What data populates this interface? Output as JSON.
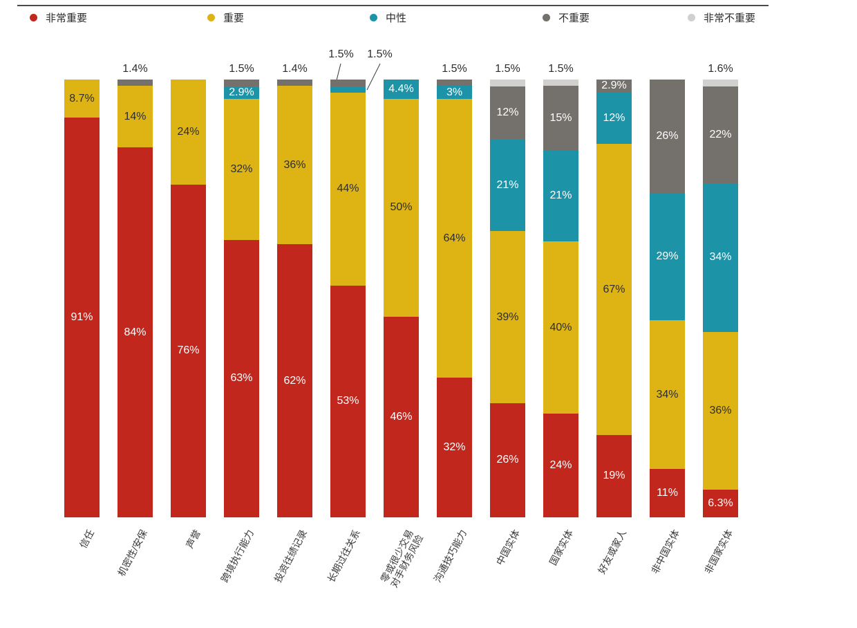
{
  "chart_data": {
    "type": "bar",
    "subtype": "stacked-100-percent-vertical",
    "value_format": "percent",
    "legend_position": "top",
    "grid": false,
    "title": "",
    "xlabel": "",
    "ylabel": "",
    "legend": [
      {
        "label": "非常重要",
        "color": "#c2271e"
      },
      {
        "label": "重要",
        "color": "#deb414"
      },
      {
        "label": "中性",
        "color": "#1d93a8"
      },
      {
        "label": "不重要",
        "color": "#74706b"
      },
      {
        "label": "非常不重要",
        "color": "#d0d0ce"
      }
    ],
    "style": {
      "label_dark": "#2d2d2d",
      "label_light": "#ffffff",
      "rule_color": "#4a4a4a",
      "callout_line_color": "#3a3a3a",
      "background": "#ffffff"
    },
    "categories": [
      "信任",
      "机密性/安保",
      "声誉",
      "跨境执行能力",
      "投资往绩记录",
      "长期过往关系",
      "零或很少交易对手财务风险",
      "沟通技巧能力",
      "中国实体",
      "国家实体",
      "好友或家人",
      "非中国实体",
      "非国家实体"
    ],
    "series": [
      {
        "name": "非常重要",
        "values": [
          91,
          84,
          76,
          63,
          62,
          53,
          46,
          32,
          26,
          24,
          19,
          11,
          6.3
        ]
      },
      {
        "name": "重要",
        "values": [
          8.7,
          14,
          24,
          32,
          36,
          44,
          50,
          64,
          39,
          40,
          67,
          34,
          36
        ]
      },
      {
        "name": "中性",
        "values": [
          0,
          0,
          0,
          2.9,
          0,
          1.5,
          4.4,
          3,
          21,
          21,
          12,
          29,
          34
        ]
      },
      {
        "name": "不重要",
        "values": [
          0,
          1.4,
          0,
          1.5,
          1.4,
          1.5,
          0,
          1.5,
          12,
          15,
          2.9,
          26,
          22
        ]
      },
      {
        "name": "非常不重要",
        "values": [
          0,
          0,
          0,
          0,
          0,
          0,
          0,
          0,
          1.5,
          1.5,
          0,
          0,
          1.6
        ]
      }
    ],
    "bars": [
      {
        "category": "信任",
        "segments": [
          {
            "series": "重要",
            "value": 8.7,
            "label": "8.7%",
            "placement": "inside"
          },
          {
            "series": "非常重要",
            "value": 91,
            "label": "91%",
            "placement": "inside"
          }
        ]
      },
      {
        "category": "机密性/安保",
        "segments": [
          {
            "series": "不重要",
            "value": 1.4,
            "label": "1.4%",
            "placement": "above"
          },
          {
            "series": "重要",
            "value": 14,
            "label": "14%",
            "placement": "inside"
          },
          {
            "series": "非常重要",
            "value": 84,
            "label": "84%",
            "placement": "inside"
          }
        ]
      },
      {
        "category": "声誉",
        "segments": [
          {
            "series": "重要",
            "value": 24,
            "label": "24%",
            "placement": "inside"
          },
          {
            "series": "非常重要",
            "value": 76,
            "label": "76%",
            "placement": "inside"
          }
        ]
      },
      {
        "category": "跨境执行能力",
        "segments": [
          {
            "series": "不重要",
            "value": 1.5,
            "label": "1.5%",
            "placement": "above"
          },
          {
            "series": "中性",
            "value": 2.9,
            "label": "2.9%",
            "placement": "inside"
          },
          {
            "series": "重要",
            "value": 32,
            "label": "32%",
            "placement": "inside"
          },
          {
            "series": "非常重要",
            "value": 63,
            "label": "63%",
            "placement": "inside"
          }
        ]
      },
      {
        "category": "投资往绩记录",
        "segments": [
          {
            "series": "不重要",
            "value": 1.4,
            "label": "1.4%",
            "placement": "above"
          },
          {
            "series": "重要",
            "value": 36,
            "label": "36%",
            "placement": "inside"
          },
          {
            "series": "非常重要",
            "value": 62,
            "label": "62%",
            "placement": "inside"
          }
        ]
      },
      {
        "category": "长期过往关系",
        "segments": [
          {
            "series": "不重要",
            "value": 1.5,
            "label": "1.5%",
            "placement": "callout"
          },
          {
            "series": "中性",
            "value": 1.5,
            "label": "1.5%",
            "placement": "callout"
          },
          {
            "series": "重要",
            "value": 44,
            "label": "44%",
            "placement": "inside"
          },
          {
            "series": "非常重要",
            "value": 53,
            "label": "53%",
            "placement": "inside"
          }
        ]
      },
      {
        "category": "零或很少交易对手财务风险",
        "category_lines": [
          "零或很少交易",
          "对手财务风险"
        ],
        "segments": [
          {
            "series": "中性",
            "value": 4.4,
            "label": "4.4%",
            "placement": "inside"
          },
          {
            "series": "重要",
            "value": 50,
            "label": "50%",
            "placement": "inside"
          },
          {
            "series": "非常重要",
            "value": 46,
            "label": "46%",
            "placement": "inside"
          }
        ]
      },
      {
        "category": "沟通技巧能力",
        "segments": [
          {
            "series": "不重要",
            "value": 1.5,
            "label": "1.5%",
            "placement": "above"
          },
          {
            "series": "中性",
            "value": 3,
            "label": "3%",
            "placement": "inside"
          },
          {
            "series": "重要",
            "value": 64,
            "label": "64%",
            "placement": "inside"
          },
          {
            "series": "非常重要",
            "value": 32,
            "label": "32%",
            "placement": "inside"
          }
        ]
      },
      {
        "category": "中国实体",
        "segments": [
          {
            "series": "非常不重要",
            "value": 1.5,
            "label": "1.5%",
            "placement": "above"
          },
          {
            "series": "不重要",
            "value": 12,
            "label": "12%",
            "placement": "inside"
          },
          {
            "series": "中性",
            "value": 21,
            "label": "21%",
            "placement": "inside"
          },
          {
            "series": "重要",
            "value": 39,
            "label": "39%",
            "placement": "inside"
          },
          {
            "series": "非常重要",
            "value": 26,
            "label": "26%",
            "placement": "inside"
          }
        ]
      },
      {
        "category": "国家实体",
        "segments": [
          {
            "series": "非常不重要",
            "value": 1.5,
            "label": "1.5%",
            "placement": "above"
          },
          {
            "series": "不重要",
            "value": 15,
            "label": "15%",
            "placement": "inside"
          },
          {
            "series": "中性",
            "value": 21,
            "label": "21%",
            "placement": "inside"
          },
          {
            "series": "重要",
            "value": 40,
            "label": "40%",
            "placement": "inside"
          },
          {
            "series": "非常重要",
            "value": 24,
            "label": "24%",
            "placement": "inside"
          }
        ]
      },
      {
        "category": "好友或家人",
        "segments": [
          {
            "series": "不重要",
            "value": 2.9,
            "label": "2.9%",
            "placement": "inside"
          },
          {
            "series": "中性",
            "value": 12,
            "label": "12%",
            "placement": "inside"
          },
          {
            "series": "重要",
            "value": 67,
            "label": "67%",
            "placement": "inside"
          },
          {
            "series": "非常重要",
            "value": 19,
            "label": "19%",
            "placement": "inside"
          }
        ]
      },
      {
        "category": "非中国实体",
        "segments": [
          {
            "series": "不重要",
            "value": 26,
            "label": "26%",
            "placement": "inside"
          },
          {
            "series": "中性",
            "value": 29,
            "label": "29%",
            "placement": "inside"
          },
          {
            "series": "重要",
            "value": 34,
            "label": "34%",
            "placement": "inside"
          },
          {
            "series": "非常重要",
            "value": 11,
            "label": "11%",
            "placement": "inside"
          }
        ]
      },
      {
        "category": "非国家实体",
        "segments": [
          {
            "series": "非常不重要",
            "value": 1.6,
            "label": "1.6%",
            "placement": "above"
          },
          {
            "series": "不重要",
            "value": 22,
            "label": "22%",
            "placement": "inside"
          },
          {
            "series": "中性",
            "value": 34,
            "label": "34%",
            "placement": "inside"
          },
          {
            "series": "重要",
            "value": 36,
            "label": "36%",
            "placement": "inside"
          },
          {
            "series": "非常重要",
            "value": 6.3,
            "label": "6.3%",
            "placement": "inside"
          }
        ]
      }
    ]
  }
}
